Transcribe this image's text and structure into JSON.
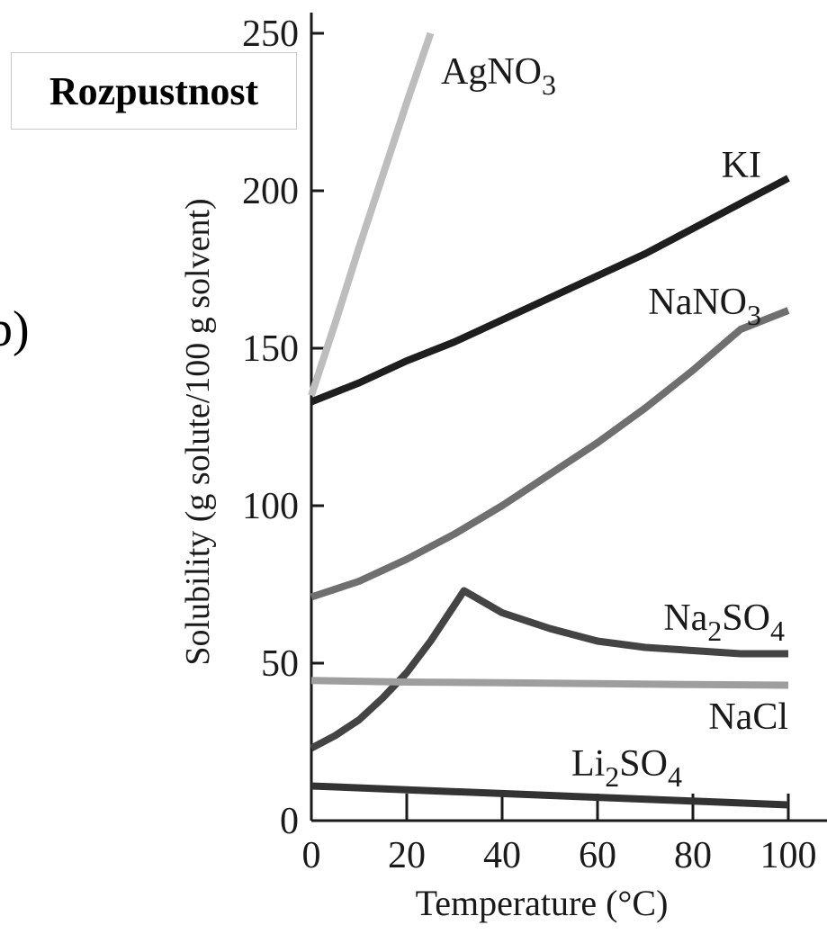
{
  "panel": {
    "title": "Rozpustnost",
    "side_mark": "b)"
  },
  "chart_data": {
    "type": "line",
    "xlabel": "Temperature (°C)",
    "ylabel": "Solubility (g solute/100 g solvent)",
    "xlim": [
      0,
      100
    ],
    "ylim": [
      0,
      250
    ],
    "x_ticks": [
      0,
      20,
      40,
      60,
      80,
      100
    ],
    "y_ticks": [
      0,
      50,
      100,
      150,
      200,
      250
    ],
    "grid": false,
    "legend": "none",
    "series": [
      {
        "name": "AgNO3",
        "label_base": "AgNO",
        "label_sub": "3",
        "label_tail": "",
        "color": "#bdbdbd",
        "x": [
          0,
          5,
          10,
          15,
          20,
          25
        ],
        "y": [
          135,
          158,
          182,
          205,
          228,
          250
        ]
      },
      {
        "name": "KI",
        "label_base": "KI",
        "label_sub": "",
        "label_tail": "",
        "color": "#1e1e1e",
        "x": [
          0,
          10,
          20,
          30,
          40,
          50,
          60,
          70,
          80,
          90,
          100
        ],
        "y": [
          133,
          139,
          146,
          152,
          159,
          166,
          173,
          180,
          188,
          196,
          204
        ]
      },
      {
        "name": "NaNO3",
        "label_base": "NaNO",
        "label_sub": "3",
        "label_tail": "",
        "color": "#6f6f6f",
        "x": [
          0,
          10,
          20,
          30,
          40,
          50,
          60,
          70,
          80,
          90,
          100
        ],
        "y": [
          71,
          76,
          83,
          91,
          100,
          110,
          120,
          131,
          143,
          156,
          162
        ]
      },
      {
        "name": "Na2SO4",
        "label_base": "Na",
        "label_sub": "2",
        "label_tail": "SO",
        "label_sub2": "4",
        "color": "#444444",
        "x": [
          0,
          5,
          10,
          15,
          20,
          25,
          32,
          40,
          50,
          60,
          70,
          80,
          90,
          100
        ],
        "y": [
          23,
          27,
          32,
          39,
          47,
          57,
          73,
          66,
          61,
          57,
          55,
          54,
          53,
          53
        ]
      },
      {
        "name": "NaCl",
        "label_base": "NaCl",
        "label_sub": "",
        "label_tail": "",
        "color": "#9e9e9e",
        "x": [
          0,
          20,
          40,
          60,
          80,
          100
        ],
        "y": [
          44.5,
          44,
          43.8,
          43.5,
          43.2,
          43
        ]
      },
      {
        "name": "Li2SO4",
        "label_base": "Li",
        "label_sub": "2",
        "label_tail": "SO",
        "label_sub2": "4",
        "color": "#333333",
        "x": [
          0,
          20,
          40,
          60,
          80,
          100
        ],
        "y": [
          11,
          9.8,
          8.6,
          7.4,
          6.2,
          5
        ]
      }
    ]
  }
}
